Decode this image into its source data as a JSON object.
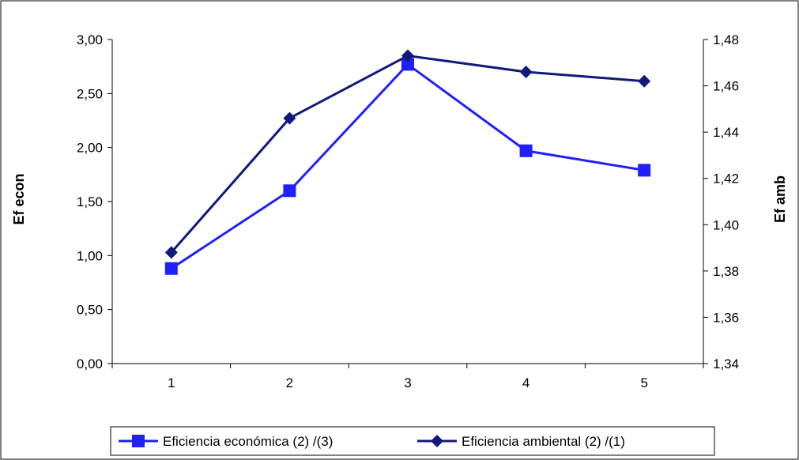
{
  "chart_data": {
    "type": "line",
    "title": "",
    "categories": [
      "1",
      "2",
      "3",
      "4",
      "5"
    ],
    "y_left": {
      "label": "Ef econ",
      "ylim": [
        0,
        3
      ],
      "ticks": [
        "0,00",
        "0,50",
        "1,00",
        "1,50",
        "2,00",
        "2,50",
        "3,00"
      ]
    },
    "y_right": {
      "label": "Ef amb",
      "ylim": [
        1.34,
        1.48
      ],
      "ticks": [
        "1,34",
        "1,36",
        "1,38",
        "1,40",
        "1,42",
        "1,44",
        "1,46",
        "1,48"
      ]
    },
    "series": [
      {
        "name": "Eficiencia económica (2) /(3)",
        "axis": "left",
        "marker": "square",
        "color": "#1f1fff",
        "values": [
          0.88,
          1.6,
          2.77,
          1.97,
          1.79
        ]
      },
      {
        "name": "Eficiencia ambiental (2) /(1)",
        "axis": "right",
        "marker": "diamond",
        "color": "#0f1a7a",
        "values": [
          1.388,
          1.446,
          1.473,
          1.466,
          1.462
        ]
      }
    ],
    "grid": false,
    "legend_position": "bottom"
  }
}
